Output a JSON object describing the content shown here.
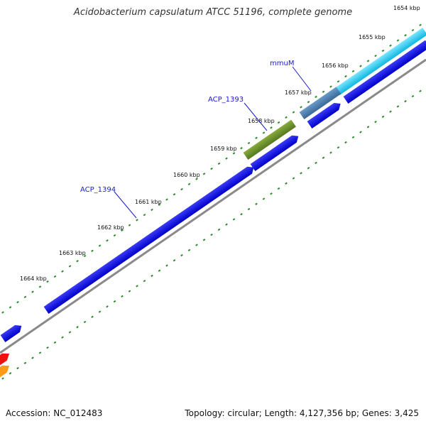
{
  "title": "Acidobacterium capsulatum ATCC 51196, complete genome",
  "footer": {
    "accession": "Accession: NC_012483",
    "summary": "Topology: circular; Length: 4,127,356 bp; Genes: 3,425"
  },
  "ticks": [
    "1654 kbp",
    "1655 kbp",
    "1656 kbp",
    "1657 kbp",
    "1658 kbp",
    "1659 kbp",
    "1660 kbp",
    "1661 kbp",
    "1662 kbp",
    "1663 kbp",
    "1664 kbp"
  ],
  "gene_labels": [
    "mmuM",
    "ACP_1393",
    "ACP_1394"
  ],
  "colors": {
    "cds": "#0a0ae0",
    "cyan": "#1ec8ec",
    "steel": "#4a7fb0",
    "olive": "#6a8f2a",
    "red": "#ee1111",
    "orange": "#ff9a14",
    "backbone": "#8a8a8a",
    "dots": "#2a8a2a",
    "label": "#1a1acc"
  }
}
